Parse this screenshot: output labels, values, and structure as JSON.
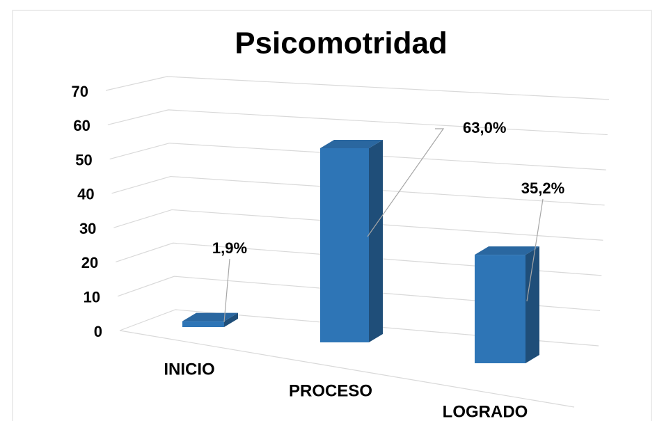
{
  "chart_data": {
    "type": "bar3d",
    "title": "Psicomotridad",
    "categories": [
      "INICIO",
      "PROCESO",
      "LOGRADO"
    ],
    "values": [
      1.9,
      63.0,
      35.2
    ],
    "value_labels": [
      "1,9%",
      "63,0%",
      "35,2%"
    ],
    "color": "#2e75b6",
    "ylim": [
      0,
      70
    ],
    "yticks": [
      0,
      10,
      20,
      30,
      40,
      50,
      60,
      70
    ],
    "grid": true
  }
}
